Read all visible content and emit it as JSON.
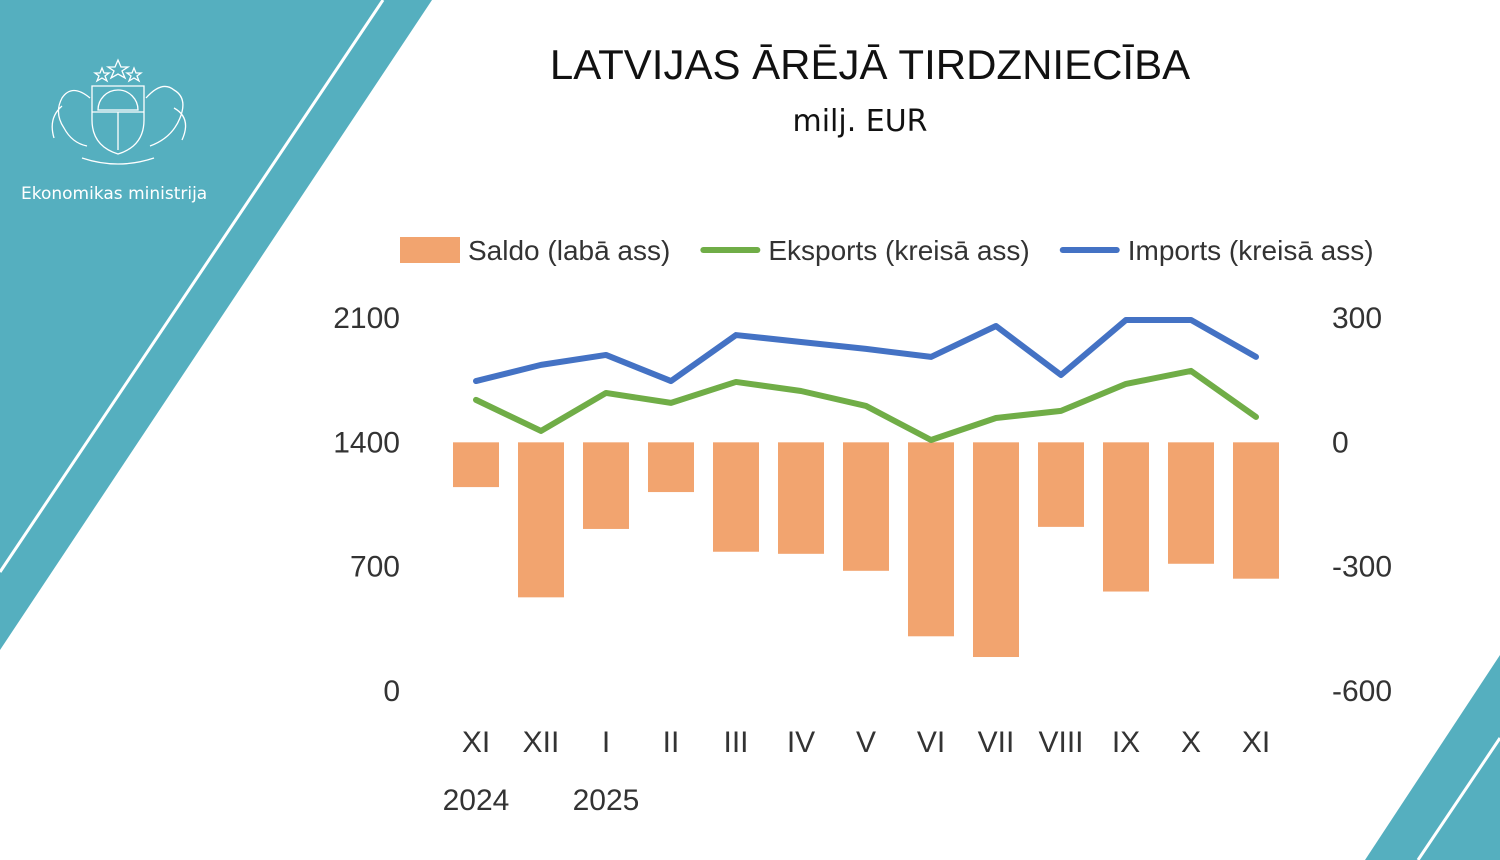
{
  "header": {
    "title": "LATVIJAS ĀRĒJĀ TIRDZNIECĪBA",
    "subtitle": "milj. EUR"
  },
  "brand": {
    "org_name": "Ekonomikas ministrija",
    "logo_icon": "coat-of-arms-icon"
  },
  "colors": {
    "teal": "#55AFBF",
    "saldo": "#F2A46F",
    "eksports": "#70AD47",
    "imports": "#4472C4"
  },
  "chart_data": {
    "type": "bar+line",
    "title": "LATVIJAS ĀRĒJĀ TIRDZNIECĪBA",
    "subtitle": "milj. EUR",
    "categories": [
      "XI",
      "XII",
      "I",
      "II",
      "III",
      "IV",
      "V",
      "VI",
      "VII",
      "VIII",
      "IX",
      "X",
      "XI"
    ],
    "year_labels": [
      {
        "index": 0,
        "label": "2024"
      },
      {
        "index": 2,
        "label": "2025"
      }
    ],
    "left_axis": {
      "ticks": [
        "0",
        "700",
        "1400",
        "2100"
      ],
      "range": [
        0,
        2100
      ]
    },
    "right_axis": {
      "ticks": [
        "-600",
        "-300",
        "0",
        "300"
      ],
      "range": [
        -600,
        300
      ]
    },
    "legend_position": "top",
    "grid": false,
    "series": [
      {
        "name": "Saldo (labā ass)",
        "type": "bar",
        "axis": "right",
        "values": [
          -108,
          -374,
          -209,
          -120,
          -264,
          -269,
          -310,
          -468,
          -518,
          -204,
          -360,
          -293,
          -329
        ]
      },
      {
        "name": "Eksports (kreisā ass)",
        "type": "line",
        "axis": "left",
        "values": [
          1639,
          1464,
          1678,
          1622,
          1740,
          1689,
          1605,
          1413,
          1537,
          1577,
          1729,
          1802,
          1543
        ]
      },
      {
        "name": "Imports (kreisā ass)",
        "type": "line",
        "axis": "left",
        "values": [
          1745,
          1836,
          1892,
          1745,
          2004,
          1965,
          1926,
          1881,
          2055,
          1779,
          2089,
          2089,
          1881
        ]
      }
    ]
  }
}
